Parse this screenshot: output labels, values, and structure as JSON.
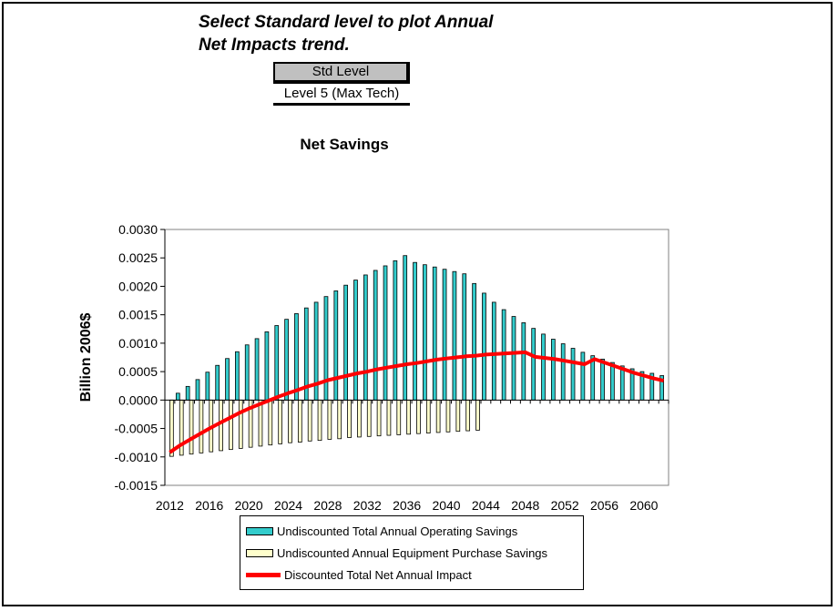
{
  "header": {
    "instruction_line1": "Select Standard level to plot Annual",
    "instruction_line2": "Net Impacts trend.",
    "std_level_button": "Std Level",
    "selected_level": "Level 5 (Max Tech)"
  },
  "chart_data": {
    "type": "bar",
    "title": "Net Savings",
    "ylabel": "Billion 2006$",
    "xlabel": "",
    "ylim": [
      -0.0015,
      0.003
    ],
    "yticks": [
      -0.0015,
      -0.001,
      -0.0005,
      0.0,
      0.0005,
      0.001,
      0.0015,
      0.002,
      0.0025,
      0.003
    ],
    "ytick_labels": [
      "-0.0015",
      "-0.0010",
      "-0.0005",
      "0.0000",
      "0.0005",
      "0.0010",
      "0.0015",
      "0.0020",
      "0.0025",
      "0.0030"
    ],
    "xtick_labels": [
      "2012",
      "2016",
      "2020",
      "2024",
      "2028",
      "2032",
      "2036",
      "2040",
      "2044",
      "2048",
      "2052",
      "2056",
      "2060"
    ],
    "x": [
      2012,
      2013,
      2014,
      2015,
      2016,
      2017,
      2018,
      2019,
      2020,
      2021,
      2022,
      2023,
      2024,
      2025,
      2026,
      2027,
      2028,
      2029,
      2030,
      2031,
      2032,
      2033,
      2034,
      2035,
      2036,
      2037,
      2038,
      2039,
      2040,
      2041,
      2042,
      2043,
      2044,
      2045,
      2046,
      2047,
      2048,
      2049,
      2050,
      2051,
      2052,
      2053,
      2054,
      2055,
      2056,
      2057,
      2058,
      2059,
      2060,
      2061,
      2062
    ],
    "grid": false,
    "legend_position": "bottom",
    "series": [
      {
        "name": "Undiscounted Total Annual Operating Savings",
        "type": "bar",
        "color": "#33cccc",
        "values": [
          0.0,
          0.00012,
          0.00024,
          0.00036,
          0.00049,
          0.00061,
          0.00073,
          0.00085,
          0.00097,
          0.00108,
          0.0012,
          0.00131,
          0.00142,
          0.00152,
          0.00162,
          0.00172,
          0.00182,
          0.00192,
          0.00202,
          0.00211,
          0.0022,
          0.00228,
          0.00236,
          0.00245,
          0.00254,
          0.00242,
          0.00238,
          0.00234,
          0.0023,
          0.00226,
          0.00222,
          0.00205,
          0.00188,
          0.00172,
          0.00159,
          0.00147,
          0.00136,
          0.00126,
          0.00116,
          0.00107,
          0.00099,
          0.00091,
          0.00084,
          0.00078,
          0.00072,
          0.00066,
          0.0006,
          0.00055,
          0.0005,
          0.00047,
          0.00043
        ]
      },
      {
        "name": "Undiscounted Annual Equipment Purchase Savings",
        "type": "bar",
        "color": "#ffffcc",
        "values": [
          -0.00099,
          -0.00097,
          -0.00095,
          -0.00093,
          -0.00091,
          -0.00089,
          -0.00087,
          -0.00085,
          -0.00083,
          -0.00081,
          -0.00079,
          -0.00077,
          -0.00075,
          -0.00074,
          -0.00072,
          -0.00071,
          -0.00069,
          -0.00068,
          -0.00066,
          -0.00065,
          -0.00064,
          -0.00063,
          -0.00062,
          -0.00061,
          -0.0006,
          -0.00059,
          -0.00058,
          -0.00057,
          -0.00056,
          -0.00055,
          -0.00054,
          -0.00053,
          0,
          0,
          0,
          0,
          0,
          0,
          0,
          0,
          0,
          0,
          0,
          0,
          0,
          0,
          0,
          0,
          0,
          0,
          0
        ]
      },
      {
        "name": "Discounted Total Net Annual Impact",
        "type": "line",
        "color": "#ff0000",
        "values": [
          -0.00092,
          -0.0008,
          -0.0007,
          -0.0006,
          -0.0005,
          -0.00041,
          -0.00032,
          -0.00023,
          -0.00015,
          -8e-05,
          -1e-05,
          6e-05,
          0.00012,
          0.00018,
          0.00024,
          0.00029,
          0.00035,
          0.00039,
          0.00043,
          0.00047,
          0.0005,
          0.00054,
          0.00057,
          0.0006,
          0.00063,
          0.00065,
          0.00068,
          0.00071,
          0.00073,
          0.00075,
          0.00077,
          0.00078,
          0.0008,
          0.00081,
          0.00082,
          0.00083,
          0.00084,
          0.00076,
          0.00074,
          0.00072,
          0.00069,
          0.00066,
          0.00063,
          0.00072,
          0.00066,
          0.0006,
          0.00054,
          0.00048,
          0.00043,
          0.00038,
          0.00034
        ]
      }
    ]
  }
}
